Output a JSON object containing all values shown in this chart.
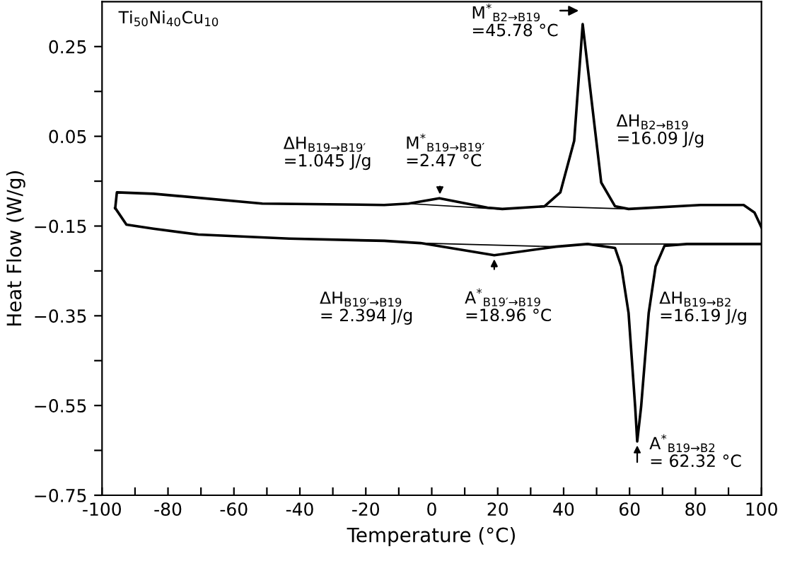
{
  "chart_data": {
    "type": "line",
    "xlabel": "Temperature (°C)",
    "ylabel": "Heat Flow (W/g)",
    "xlim": [
      -100,
      100
    ],
    "ylim": [
      -0.75,
      0.35
    ],
    "xticks": [
      -100,
      {
        "value": -90,
        "label": null
      },
      -80,
      {
        "value": -70,
        "label": null
      },
      -60,
      {
        "value": -50,
        "label": null
      },
      -40,
      {
        "value": -30,
        "label": null
      },
      -20,
      {
        "value": -10,
        "label": null
      },
      0,
      {
        "value": 10,
        "label": null
      },
      20,
      {
        "value": 30,
        "label": null
      },
      40,
      {
        "value": 50,
        "label": null
      },
      60,
      {
        "value": 70,
        "label": null
      },
      80,
      {
        "value": 90,
        "label": null
      },
      100
    ],
    "yticks": [
      {
        "value": -0.75,
        "label": "−0.75"
      },
      {
        "value": -0.65,
        "label": null
      },
      {
        "value": -0.55,
        "label": "−0.55"
      },
      {
        "value": -0.45,
        "label": null
      },
      {
        "value": -0.35,
        "label": "−0.35"
      },
      {
        "value": -0.25,
        "label": null
      },
      {
        "value": -0.15,
        "label": "−0.15"
      },
      {
        "value": -0.05,
        "label": null
      },
      0.05,
      {
        "value": 0.15,
        "label": null
      },
      0.25
    ],
    "grid": false,
    "legend": false,
    "series": [
      {
        "color": "#000000",
        "x": [
          -96,
          -95.5,
          -84.4,
          -51.4,
          -14.4,
          -7,
          2.3,
          16.9,
          21.4,
          34.2,
          39,
          43.2,
          45.78,
          49.4,
          51.4,
          55.6,
          59.7,
          81.5,
          94.6,
          97.9,
          100
        ],
        "values": [
          -0.11,
          -0.075,
          -0.078,
          -0.1,
          -0.103,
          -0.1,
          -0.088,
          -0.109,
          -0.112,
          -0.106,
          -0.075,
          0.04,
          0.3,
          0.072,
          -0.053,
          -0.106,
          -0.112,
          -0.103,
          -0.103,
          -0.12,
          -0.153
        ]
      },
      {
        "color": "#000000",
        "x": [
          -96,
          -92.6,
          -84.4,
          -70.8,
          -43.2,
          -14.4,
          -3.4,
          18.96,
          37.7,
          47.3,
          55.6,
          57.5,
          59.7,
          61.7,
          62.32,
          63.5,
          65.8,
          67.9,
          70.6,
          77.4,
          100
        ],
        "values": [
          -0.11,
          -0.147,
          -0.156,
          -0.169,
          -0.178,
          -0.183,
          -0.188,
          -0.215,
          -0.196,
          -0.19,
          -0.199,
          -0.24,
          -0.344,
          -0.553,
          -0.63,
          -0.553,
          -0.344,
          -0.24,
          -0.194,
          -0.19,
          -0.19
        ]
      },
      {
        "color": "#000000",
        "x": [
          -7,
          20,
          null,
          34.2,
          59.7,
          null,
          -3.4,
          37.7,
          null,
          47.3,
          77.4
        ],
        "values": [
          -0.1,
          -0.112,
          null,
          -0.106,
          -0.112,
          null,
          -0.188,
          -0.196,
          null,
          -0.19,
          -0.19
        ]
      }
    ],
    "annotations": [
      "Ti$_{50}$Ni$_{40}$Cu$_{10}$",
      {
        "text": "M$^{*}$$_{B2→B19}$\n=45.78 °C",
        "x": 45.78,
        "y": 0.3
      },
      "ΔH$_{B2→B19}$\n=16.09 J/g",
      "ΔH$_{B19→B19′}$\n=1.045 J/g",
      {
        "text": "M$^{*}$$_{B19→B19′}$\n=2.47 °C",
        "x": 2.47,
        "y": -0.088
      },
      "ΔH$_{B19′→B19}$\n= 2.394 J/g",
      {
        "text": "A$^{*}$$_{B19′→B19}$\n=18.96 °C",
        "x": 18.96,
        "y": -0.215
      },
      "ΔH$_{B19→B2}$\n=16.19 J/g",
      {
        "text": "A$^{*}$$_{B19→B2}$\n= 62.32 °C",
        "x": 62.32,
        "y": -0.63
      }
    ]
  }
}
